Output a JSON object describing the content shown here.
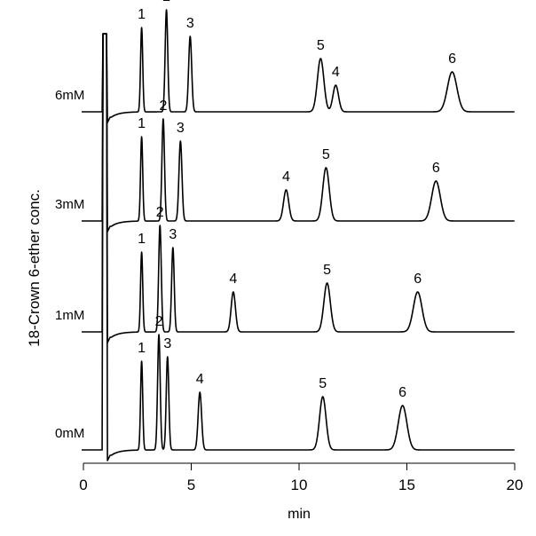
{
  "chart_data": {
    "type": "line",
    "xlabel": "min",
    "ylabel": "18-Crown 6-ether conc.",
    "xlim": [
      0,
      20
    ],
    "x_ticks": [
      0,
      5,
      10,
      15,
      20
    ],
    "grid": false,
    "series": [
      {
        "name": "0mM",
        "peaks": [
          {
            "label": "1",
            "time": 2.7,
            "height": 1.0,
            "width": 0.05
          },
          {
            "label": "2",
            "time": 3.5,
            "height": 1.3,
            "width": 0.06
          },
          {
            "label": "3",
            "time": 3.9,
            "height": 1.05,
            "width": 0.06
          },
          {
            "label": "4",
            "time": 5.4,
            "height": 0.65,
            "width": 0.08
          },
          {
            "label": "5",
            "time": 11.1,
            "height": 0.6,
            "width": 0.15
          },
          {
            "label": "6",
            "time": 14.8,
            "height": 0.5,
            "width": 0.2
          }
        ]
      },
      {
        "name": "1mM",
        "peaks": [
          {
            "label": "1",
            "time": 2.7,
            "height": 0.9,
            "width": 0.05
          },
          {
            "label": "2",
            "time": 3.55,
            "height": 1.2,
            "width": 0.06
          },
          {
            "label": "3",
            "time": 4.15,
            "height": 0.95,
            "width": 0.06
          },
          {
            "label": "4",
            "time": 6.95,
            "height": 0.45,
            "width": 0.1
          },
          {
            "label": "5",
            "time": 11.3,
            "height": 0.55,
            "width": 0.15
          },
          {
            "label": "6",
            "time": 15.5,
            "height": 0.45,
            "width": 0.2
          }
        ]
      },
      {
        "name": "3mM",
        "peaks": [
          {
            "label": "1",
            "time": 2.7,
            "height": 0.95,
            "width": 0.05
          },
          {
            "label": "2",
            "time": 3.7,
            "height": 1.15,
            "width": 0.06
          },
          {
            "label": "3",
            "time": 4.5,
            "height": 0.9,
            "width": 0.07
          },
          {
            "label": "4",
            "time": 9.4,
            "height": 0.35,
            "width": 0.12
          },
          {
            "label": "5",
            "time": 11.25,
            "height": 0.6,
            "width": 0.15
          },
          {
            "label": "6",
            "time": 16.35,
            "height": 0.45,
            "width": 0.2
          }
        ]
      },
      {
        "name": "6mM",
        "peaks": [
          {
            "label": "1",
            "time": 2.7,
            "height": 0.95,
            "width": 0.05
          },
          {
            "label": "2",
            "time": 3.85,
            "height": 1.15,
            "width": 0.06
          },
          {
            "label": "3",
            "time": 4.95,
            "height": 0.85,
            "width": 0.07
          },
          {
            "label": "5",
            "time": 11.0,
            "height": 0.6,
            "width": 0.15
          },
          {
            "label": "4",
            "time": 11.7,
            "height": 0.3,
            "width": 0.13
          },
          {
            "label": "6",
            "time": 17.1,
            "height": 0.45,
            "width": 0.22
          }
        ]
      }
    ]
  }
}
